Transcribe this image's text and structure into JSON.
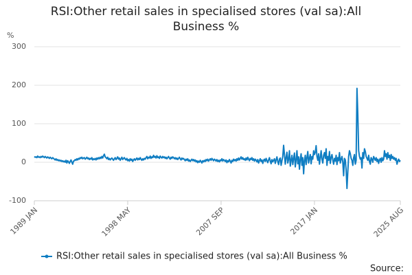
{
  "chart_data": {
    "type": "line",
    "title": "RSI:Other retail sales in specialised stores (val sa):All Business %",
    "y_label": "%",
    "source": "Source:",
    "ylim": [
      -100,
      300
    ],
    "yticks": [
      -100,
      0,
      100,
      200,
      300
    ],
    "grid": true,
    "categories": [
      "1989 JAN",
      null,
      null,
      null,
      null,
      null,
      null,
      null,
      null,
      null,
      null,
      null,
      null,
      null,
      null,
      null,
      null,
      null,
      null,
      null,
      null,
      null,
      null,
      null,
      null,
      null,
      null,
      null,
      null,
      null,
      null,
      null,
      null,
      null,
      null,
      null,
      null,
      null,
      null,
      null,
      null,
      null,
      null,
      null,
      null,
      null,
      null,
      null,
      null,
      null,
      null,
      null,
      null,
      null,
      null,
      null,
      null,
      null,
      null,
      null,
      null,
      null,
      null,
      null,
      null,
      null,
      null,
      null,
      null,
      null,
      null,
      null,
      null,
      null,
      null,
      null,
      null,
      null,
      null,
      null,
      null,
      null,
      null,
      null,
      null,
      null,
      null,
      null,
      null,
      null,
      null,
      null,
      null,
      null,
      null,
      null,
      null,
      null,
      null,
      null,
      null,
      null,
      null,
      null,
      null,
      null,
      null,
      null,
      null,
      null,
      null,
      null,
      "1998 MAY",
      null,
      null,
      null,
      null,
      null,
      null,
      null,
      null,
      null,
      null,
      null,
      null,
      null,
      null,
      null,
      null,
      null,
      null,
      null,
      null,
      null,
      null,
      null,
      null,
      null,
      null,
      null,
      null,
      null,
      null,
      null,
      null,
      null,
      null,
      null,
      null,
      null,
      null,
      null,
      null,
      null,
      null,
      null,
      null,
      null,
      null,
      null,
      null,
      null,
      null,
      null,
      null,
      null,
      null,
      null,
      null,
      null,
      null,
      null,
      null,
      null,
      null,
      null,
      null,
      null,
      null,
      null,
      null,
      null,
      null,
      null,
      null,
      null,
      null,
      null,
      null,
      null,
      null,
      null,
      null,
      null,
      null,
      null,
      null,
      null,
      null,
      null,
      null,
      null,
      null,
      null,
      null,
      null,
      null,
      null,
      null,
      null,
      null,
      null,
      null,
      null,
      null,
      null,
      null,
      null,
      null,
      null,
      null,
      null,
      null,
      null,
      "2007 SEP",
      null,
      null,
      null,
      null,
      null,
      null,
      null,
      null,
      null,
      null,
      null,
      null,
      null,
      null,
      null,
      null,
      null,
      null,
      null,
      null,
      null,
      null,
      null,
      null,
      null,
      null,
      null,
      null,
      null,
      null,
      null,
      null,
      null,
      null,
      null,
      null,
      null,
      null,
      null,
      null,
      null,
      null,
      null,
      null,
      null,
      null,
      null,
      null,
      null,
      null,
      null,
      null,
      null,
      null,
      null,
      null,
      null,
      null,
      null,
      null,
      null,
      null,
      null,
      null,
      null,
      null,
      null,
      null,
      null,
      null,
      null,
      null,
      null,
      null,
      null,
      null,
      null,
      null,
      null,
      null,
      null,
      null,
      null,
      null,
      null,
      null,
      null,
      null,
      null,
      null,
      null,
      null,
      null,
      null,
      null,
      null,
      null,
      null,
      null,
      null,
      null,
      null,
      null,
      null,
      null,
      null,
      null,
      null,
      null,
      null,
      null,
      "2017 JAN",
      null,
      null,
      null,
      null,
      null,
      null,
      null,
      null,
      null,
      null,
      null,
      null,
      null,
      null,
      null,
      null,
      null,
      null,
      null,
      null,
      null,
      null,
      null,
      null,
      null,
      null,
      null,
      null,
      null,
      null,
      null,
      null,
      null,
      null,
      null,
      null,
      null,
      null,
      null,
      null,
      null,
      null,
      null,
      null,
      null,
      null,
      null,
      null,
      null,
      null,
      null,
      null,
      null,
      null,
      null,
      null,
      null,
      null,
      null,
      null,
      null,
      null,
      null,
      null,
      null,
      null,
      null,
      null,
      null,
      null,
      null,
      null,
      null,
      null,
      null,
      null,
      null,
      null,
      null,
      null,
      null,
      null,
      null,
      null,
      null,
      null,
      null,
      null,
      null,
      null,
      null,
      null,
      null,
      null,
      null,
      null,
      null,
      null,
      null,
      null,
      null,
      null,
      "2025 AUG"
    ],
    "series": [
      {
        "name": "RSI:Other retail sales in specialised stores (val sa):All Business %",
        "color": "#0f7dc2",
        "values": [
          15,
          13,
          14,
          12,
          16,
          13,
          14,
          12,
          15,
          13,
          16,
          14,
          12,
          15,
          13,
          11,
          14,
          12,
          10,
          13,
          11,
          9,
          12,
          10,
          8,
          6,
          9,
          5,
          7,
          4,
          6,
          3,
          5,
          2,
          4,
          1,
          3,
          0,
          5,
          -2,
          4,
          1,
          -3,
          2,
          6,
          0,
          -5,
          3,
          4,
          7,
          5,
          9,
          6,
          10,
          8,
          12,
          10,
          13,
          9,
          11,
          12,
          8,
          10,
          13,
          9,
          11,
          7,
          10,
          8,
          12,
          6,
          9,
          7,
          10,
          6,
          11,
          8,
          12,
          9,
          13,
          10,
          15,
          11,
          17,
          21,
          14,
          12,
          9,
          13,
          7,
          10,
          6,
          9,
          11,
          8,
          5,
          9,
          12,
          7,
          10,
          14,
          8,
          11,
          5,
          9,
          13,
          7,
          10,
          12,
          8,
          6,
          10,
          4,
          7,
          3,
          9,
          5,
          8,
          2,
          6,
          9,
          5,
          8,
          11,
          6,
          10,
          7,
          12,
          8,
          5,
          9,
          6,
          10,
          8,
          12,
          15,
          9,
          13,
          11,
          16,
          10,
          14,
          12,
          18,
          13,
          15,
          11,
          17,
          12,
          14,
          10,
          16,
          13,
          11,
          15,
          12,
          14,
          10,
          13,
          9,
          12,
          15,
          11,
          8,
          13,
          10,
          14,
          12,
          9,
          12,
          8,
          11,
          7,
          10,
          13,
          9,
          6,
          11,
          8,
          10,
          7,
          4,
          8,
          5,
          9,
          3,
          6,
          2,
          5,
          8,
          4,
          7,
          3,
          6,
          1,
          4,
          -1,
          3,
          0,
          5,
          2,
          -2,
          4,
          1,
          5,
          2,
          7,
          4,
          8,
          3,
          6,
          9,
          5,
          10,
          7,
          4,
          8,
          6,
          3,
          7,
          2,
          5,
          1,
          6,
          4,
          9,
          3,
          7,
          5,
          2,
          6,
          -1,
          4,
          1,
          7,
          3,
          -2,
          5,
          2,
          8,
          4,
          7,
          3,
          9,
          5,
          11,
          6,
          10,
          14,
          8,
          12,
          7,
          9,
          5,
          11,
          6,
          13,
          8,
          4,
          10,
          7,
          12,
          5,
          9,
          3,
          8,
          5,
          1,
          7,
          -2,
          4,
          9,
          2,
          6,
          -3,
          5,
          8,
          2,
          10,
          4,
          -1,
          6,
          12,
          3,
          -4,
          7,
          1,
          5,
          9,
          -3,
          6,
          14,
          2,
          -6,
          8,
          11,
          -8,
          4,
          15,
          44,
          20,
          -5,
          12,
          26,
          -2,
          8,
          30,
          -10,
          5,
          18,
          -6,
          10,
          24,
          -12,
          6,
          30,
          -4,
          14,
          -18,
          8,
          22,
          -8,
          12,
          -30,
          5,
          18,
          -6,
          12,
          28,
          -2,
          10,
          20,
          -4,
          15,
          8,
          30,
          20,
          26,
          43,
          15,
          5,
          22,
          -5,
          12,
          30,
          8,
          -2,
          18,
          25,
          10,
          35,
          -8,
          15,
          5,
          28,
          -3,
          12,
          20,
          6,
          -5,
          10,
          3,
          18,
          -6,
          12,
          4,
          25,
          -2,
          8,
          15,
          0,
          -35,
          10,
          6,
          -20,
          -68,
          -25,
          15,
          30,
          22,
          10,
          5,
          -8,
          12,
          20,
          -5,
          5,
          192,
          125,
          30,
          15,
          8,
          12,
          -15,
          25,
          10,
          35,
          28,
          15,
          10,
          5,
          18,
          2,
          -5,
          12,
          8,
          0,
          15,
          10,
          5,
          12,
          2,
          8,
          -3,
          6,
          10,
          0,
          12,
          4,
          8,
          30,
          15,
          22,
          8,
          25,
          12,
          18,
          5,
          20,
          10,
          15,
          8,
          12,
          5,
          10,
          -5,
          3,
          8,
          2,
          5
        ]
      }
    ]
  }
}
